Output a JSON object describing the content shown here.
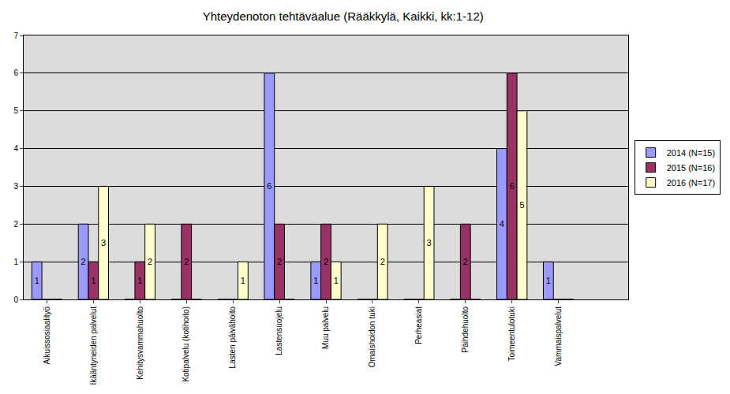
{
  "chart_data": {
    "type": "bar",
    "title": "Yhteydenoton tehtäväalue (Rääkkylä, Kaikki, kk:1-12)",
    "categories": [
      "Aikuissosiaalityö",
      "Ikääntyneiden palvelut",
      "Kehitysvammahuolto",
      "Kotipalvelu (kotihoito)",
      "Lasten päivähoito",
      "Lastensuojelu",
      "Muu palvelu",
      "Omaishoidon tuki",
      "Perheasiat",
      "Päihdehuolto",
      "Toimeentulotuki",
      "Vammaispalvelut"
    ],
    "series": [
      {
        "name": "2014 (N=15)",
        "color": "#9999ff",
        "values": [
          1,
          2,
          0,
          0,
          0,
          6,
          1,
          0,
          0,
          0,
          4,
          1
        ]
      },
      {
        "name": "2015 (N=16)",
        "color": "#993366",
        "values": [
          0,
          1,
          1,
          2,
          0,
          2,
          2,
          0,
          0,
          2,
          6,
          0
        ]
      },
      {
        "name": "2016 (N=17)",
        "color": "#ffffcc",
        "values": [
          0,
          3,
          2,
          0,
          1,
          0,
          1,
          2,
          3,
          0,
          5,
          0
        ]
      }
    ],
    "ylim": [
      0,
      7
    ],
    "yticks": [
      0,
      1,
      2,
      3,
      4,
      5,
      6,
      7
    ],
    "grid": true,
    "legend": "right",
    "data_labels": true
  }
}
